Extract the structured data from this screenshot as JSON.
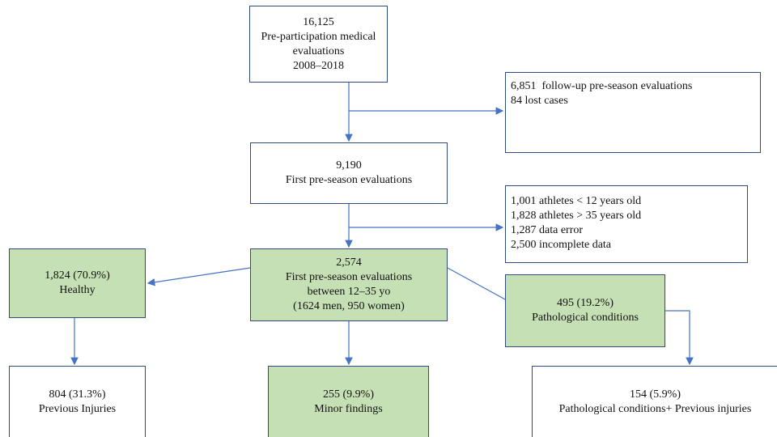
{
  "nodes": [
    {
      "lines": [
        "16,125",
        "Pre-participation medical",
        "evaluations",
        "2008–2018"
      ]
    },
    {
      "lines": [
        "6,851  follow-up pre-season evaluations",
        "84 lost cases"
      ]
    },
    {
      "lines": [
        "9,190",
        "First pre-season evaluations"
      ]
    },
    {
      "lines": [
        "1,001 athletes < 12 years old",
        "1,828 athletes > 35 years old",
        "1,287 data error",
        "2,500 incomplete data"
      ]
    },
    {
      "lines": [
        "2,574",
        "First pre-season evaluations",
        "between 12–35 yo",
        "(1624 men, 950 women)"
      ]
    },
    {
      "lines": [
        "1,824 (70.9%)",
        "Healthy"
      ]
    },
    {
      "lines": [
        "495 (19.2%)",
        "Pathological conditions"
      ]
    },
    {
      "lines": [
        "804 (31.3%)",
        "Previous Injuries"
      ]
    },
    {
      "lines": [
        "255 (9.9%)",
        "Minor findings"
      ]
    },
    {
      "lines": [
        "154 (5.9%)",
        "Pathological conditions+ Previous injuries"
      ]
    }
  ]
}
